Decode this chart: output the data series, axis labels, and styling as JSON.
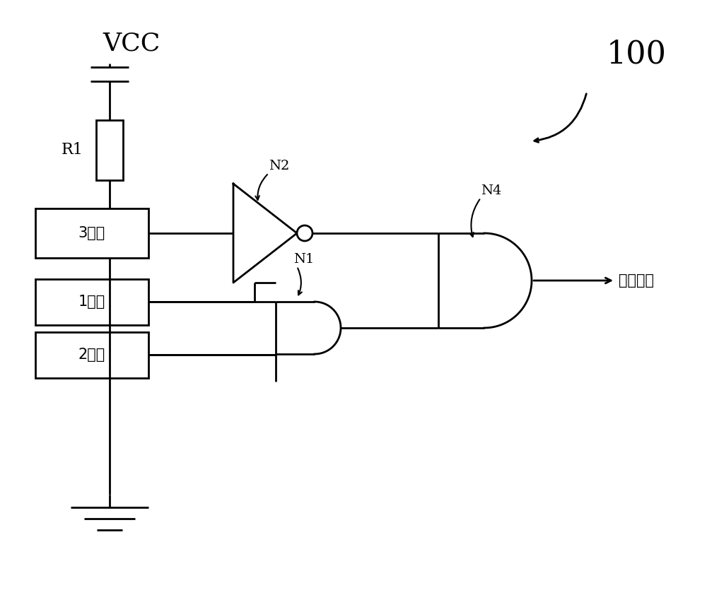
{
  "bg_color": "#ffffff",
  "line_color": "#000000",
  "line_width": 2.0,
  "fig_width": 10.0,
  "fig_height": 8.59,
  "vcc_label": "VCC",
  "r1_label": "R1",
  "key3_label": "3号键",
  "key1_label": "1号键",
  "key2_label": "2号键",
  "n1_label": "N1",
  "n2_label": "N2",
  "n4_label": "N4",
  "ref_label": "100",
  "output_label": "脉冲信号"
}
